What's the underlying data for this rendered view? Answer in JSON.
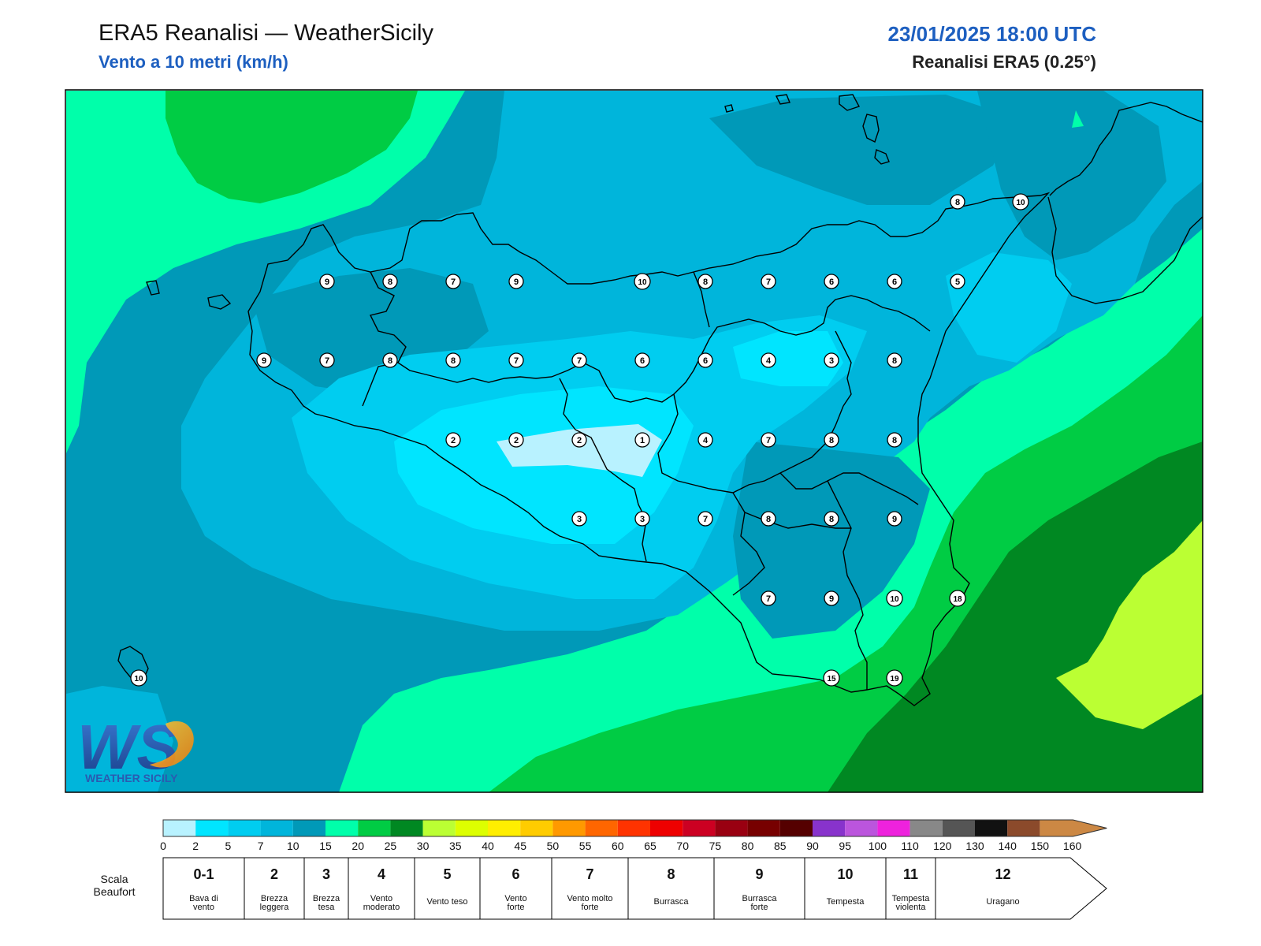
{
  "header": {
    "title": "ERA5 Reanalisi — WeatherSicily",
    "subtitle": "Vento a 10 metri (km/h)",
    "datetime": "23/01/2025 18:00 UTC",
    "source": "Reanalisi ERA5 (0.25°)"
  },
  "logo": {
    "text": "WEATHER SICILY",
    "letters": "WS"
  },
  "colors": {
    "land_border": "#000000",
    "frame": "#000000",
    "heading_blue": "#1d5fc0"
  },
  "colorbar": {
    "ticks": [
      "0",
      "2",
      "5",
      "7",
      "10",
      "15",
      "20",
      "25",
      "30",
      "35",
      "40",
      "45",
      "50",
      "55",
      "60",
      "65",
      "70",
      "75",
      "80",
      "85",
      "90",
      "95",
      "100",
      "110",
      "120",
      "130",
      "140",
      "150",
      "160"
    ],
    "colors": [
      "#b8f2ff",
      "#00e5ff",
      "#00cdf0",
      "#00b5db",
      "#0099b8",
      "#00ffaa",
      "#00cc44",
      "#008822",
      "#bbff33",
      "#ddff00",
      "#ffee00",
      "#ffcc00",
      "#ff9900",
      "#ff6600",
      "#ff3300",
      "#ee0000",
      "#cc0022",
      "#990011",
      "#770000",
      "#550000",
      "#8833cc",
      "#bb55dd",
      "#ee22dd",
      "#888888",
      "#555555",
      "#111111",
      "#8b4a2b",
      "#cc8844"
    ]
  },
  "beaufort": {
    "label": "Scala Beaufort",
    "cells": [
      {
        "num": "0-1",
        "desc": "Bava di vento"
      },
      {
        "num": "2",
        "desc": "Brezza leggera"
      },
      {
        "num": "3",
        "desc": "Brezza tesa"
      },
      {
        "num": "4",
        "desc": "Vento moderato"
      },
      {
        "num": "5",
        "desc": "Vento teso"
      },
      {
        "num": "6",
        "desc": "Vento forte"
      },
      {
        "num": "7",
        "desc": "Vento molto forte"
      },
      {
        "num": "8",
        "desc": "Burrasca"
      },
      {
        "num": "9",
        "desc": "Burrasca forte"
      },
      {
        "num": "10",
        "desc": "Tempesta"
      },
      {
        "num": "11",
        "desc": "Tempesta violenta"
      },
      {
        "num": "12",
        "desc": "Uragano"
      }
    ]
  },
  "stations": [
    {
      "label": "9",
      "value": 9
    },
    {
      "label": "8",
      "value": 8
    },
    {
      "label": "7",
      "value": 7
    },
    {
      "label": "9",
      "value": 9
    },
    {
      "label": "10",
      "value": 10
    },
    {
      "label": "8",
      "value": 8
    },
    {
      "label": "7",
      "value": 7
    },
    {
      "label": "6",
      "value": 6
    },
    {
      "label": "6",
      "value": 6
    },
    {
      "label": "5",
      "value": 5
    },
    {
      "label": "9",
      "value": 9
    },
    {
      "label": "7",
      "value": 7
    },
    {
      "label": "8",
      "value": 8
    },
    {
      "label": "8",
      "value": 8
    },
    {
      "label": "7",
      "value": 7
    },
    {
      "label": "7",
      "value": 7
    },
    {
      "label": "6",
      "value": 6
    },
    {
      "label": "6",
      "value": 6
    },
    {
      "label": "4",
      "value": 4
    },
    {
      "label": "3",
      "value": 3
    },
    {
      "label": "8",
      "value": 8
    },
    {
      "label": "2",
      "value": 2
    },
    {
      "label": "2",
      "value": 2
    },
    {
      "label": "2",
      "value": 2
    },
    {
      "label": "1",
      "value": 1
    },
    {
      "label": "4",
      "value": 4
    },
    {
      "label": "7",
      "value": 7
    },
    {
      "label": "8",
      "value": 8
    },
    {
      "label": "8",
      "value": 8
    },
    {
      "label": "3",
      "value": 3
    },
    {
      "label": "3",
      "value": 3
    },
    {
      "label": "7",
      "value": 7
    },
    {
      "label": "8",
      "value": 8
    },
    {
      "label": "8",
      "value": 8
    },
    {
      "label": "9",
      "value": 9
    },
    {
      "label": "7",
      "value": 7
    },
    {
      "label": "9",
      "value": 9
    },
    {
      "label": "10",
      "value": 10
    },
    {
      "label": "18",
      "value": 18
    },
    {
      "label": "15",
      "value": 15
    },
    {
      "label": "19",
      "value": 19
    },
    {
      "label": "10",
      "value": 10
    },
    {
      "label": "8",
      "value": 8
    },
    {
      "label": "10",
      "value": 10
    }
  ]
}
